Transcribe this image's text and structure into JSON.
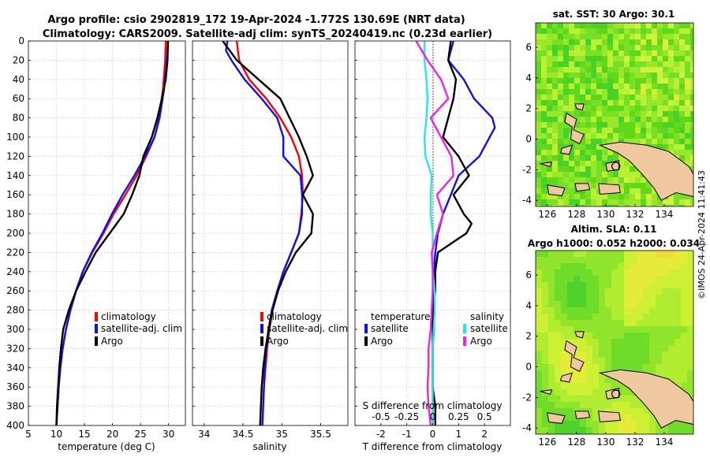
{
  "title": {
    "line1": "Argo profile: csio 2902819_172 19-Apr-2024 -1.772S 130.69E (NRT data)",
    "line2": "Climatology: CARS2009. Satellite-adj clim: synTS_20240419.nc (0.23d earlier)"
  },
  "side_label": "©IMOS 24-Apr-2024 11:41:43",
  "colors": {
    "climatology": "#ff0000",
    "satellite": "#1010ee",
    "argo": "#000000",
    "sat_salinity": "#22e8ee",
    "argo_salinity": "#ee22ee",
    "land": "#f0c8a0",
    "grid": "#c8c8c8"
  },
  "chart_data": [
    {
      "type": "line",
      "name": "temperature",
      "xlabel": "temperature (deg C)",
      "ylabel": "",
      "xlim": [
        5,
        33
      ],
      "ylim": [
        400,
        0
      ],
      "xticks": [
        5,
        10,
        15,
        20,
        25,
        30
      ],
      "yticks": [
        0,
        20,
        40,
        60,
        80,
        100,
        120,
        140,
        160,
        180,
        200,
        220,
        240,
        260,
        280,
        300,
        320,
        340,
        360,
        380,
        400
      ],
      "legend": [
        "climatology",
        "satellite-adj. clim",
        "Argo"
      ],
      "legend_position": "lower-right",
      "series": [
        {
          "name": "climatology",
          "depth": [
            0,
            20,
            50,
            80,
            100,
            120,
            140,
            160,
            180,
            200,
            220,
            240,
            260,
            280,
            300,
            320,
            340,
            360,
            380,
            400
          ],
          "values": [
            29.5,
            29.4,
            29.0,
            28.3,
            27.5,
            26.0,
            24.3,
            22.3,
            20.2,
            18.4,
            16.4,
            14.7,
            13.5,
            12.5,
            11.7,
            11.1,
            10.7,
            10.4,
            10.2,
            10.0
          ]
        },
        {
          "name": "satellite-adj. clim",
          "depth": [
            0,
            20,
            50,
            80,
            100,
            120,
            140,
            160,
            180,
            200,
            220,
            240,
            260,
            280,
            300,
            320,
            340,
            360,
            380,
            400
          ],
          "values": [
            29.9,
            29.7,
            29.2,
            28.4,
            27.5,
            25.8,
            23.9,
            21.8,
            19.9,
            18.2,
            16.3,
            14.7,
            13.5,
            12.5,
            11.7,
            11.1,
            10.7,
            10.4,
            10.2,
            10.0
          ]
        },
        {
          "name": "Argo",
          "depth": [
            0,
            20,
            40,
            60,
            80,
            100,
            120,
            140,
            160,
            180,
            200,
            220,
            240,
            260,
            280,
            300,
            320,
            340,
            360,
            380,
            400
          ],
          "values": [
            29.9,
            29.8,
            29.5,
            28.8,
            28.0,
            27.0,
            25.5,
            24.8,
            23.5,
            22.0,
            19.5,
            17.0,
            15.2,
            13.5,
            12.2,
            11.2,
            10.8,
            10.5,
            10.3,
            10.1,
            10.0
          ]
        }
      ]
    },
    {
      "type": "line",
      "name": "salinity",
      "xlabel": "salinity",
      "ylabel": "",
      "xlim": [
        33.85,
        35.85
      ],
      "ylim": [
        400,
        0
      ],
      "xticks": [
        34,
        34.5,
        35,
        35.5
      ],
      "legend": [
        "climatology",
        "satellite-adj. clim",
        "Argo"
      ],
      "legend_position": "lower-right",
      "series": [
        {
          "name": "climatology",
          "depth": [
            0,
            20,
            40,
            60,
            80,
            100,
            120,
            140,
            160,
            180,
            200,
            220,
            240,
            260,
            280,
            300,
            320,
            340,
            360,
            380,
            400
          ],
          "values": [
            34.42,
            34.45,
            34.58,
            34.8,
            34.98,
            35.12,
            35.22,
            35.26,
            35.27,
            35.25,
            35.22,
            35.12,
            35.02,
            34.95,
            34.88,
            34.84,
            34.81,
            34.79,
            34.77,
            34.76,
            34.75
          ]
        },
        {
          "name": "satellite-adj. clim",
          "depth": [
            0,
            10,
            20,
            40,
            60,
            80,
            100,
            120,
            140,
            160,
            180,
            200,
            220,
            240,
            260,
            280,
            300,
            320,
            340,
            360,
            380,
            400
          ],
          "values": [
            34.3,
            34.28,
            34.35,
            34.52,
            34.74,
            34.94,
            35.02,
            35.02,
            35.24,
            35.26,
            35.26,
            35.22,
            35.12,
            35.02,
            34.94,
            34.87,
            34.83,
            34.8,
            34.78,
            34.77,
            34.76,
            34.75
          ]
        },
        {
          "name": "Argo",
          "depth": [
            0,
            20,
            40,
            60,
            80,
            100,
            120,
            140,
            160,
            180,
            200,
            220,
            240,
            260,
            280,
            300,
            320,
            340,
            360,
            380,
            400
          ],
          "values": [
            34.24,
            34.42,
            34.7,
            34.98,
            35.1,
            35.22,
            35.32,
            35.4,
            35.27,
            35.4,
            35.38,
            35.18,
            35.05,
            34.95,
            34.88,
            34.83,
            34.79,
            34.76,
            34.74,
            34.73,
            34.72
          ]
        }
      ]
    },
    {
      "type": "line",
      "name": "differences from climatology",
      "xlabel": "T difference from climatology",
      "x2label": "S difference from climatology",
      "xlim": [
        -3,
        3
      ],
      "x2lim": [
        -0.75,
        0.75
      ],
      "ylim": [
        400,
        0
      ],
      "xticks": [
        -2,
        -1,
        0,
        1,
        2
      ],
      "x2ticks": [
        -0.5,
        -0.25,
        0,
        0.25,
        0.5
      ],
      "x2ticklabels": [
        "-0.5",
        "-0.25",
        "0",
        "0.25",
        "0.5"
      ],
      "legend_temperature": {
        "title": "temperature",
        "items": [
          "satellite",
          "Argo"
        ]
      },
      "legend_salinity": {
        "title": "salinity",
        "items": [
          "satellite",
          "Argo"
        ]
      },
      "series": [
        {
          "name": "temperature satellite",
          "axis": "T",
          "depth": [
            0,
            20,
            40,
            60,
            80,
            90,
            100,
            120,
            140,
            160,
            180,
            200,
            220,
            240,
            260,
            280,
            300,
            320,
            340,
            360,
            380,
            400
          ],
          "values": [
            0.8,
            0.6,
            1.2,
            1.6,
            2.3,
            2.4,
            2.2,
            1.8,
            1.0,
            0.7,
            0.4,
            0.2,
            0.1,
            0.05,
            0.05,
            0.05,
            0.05,
            0.0,
            0.0,
            0.0,
            0.0,
            0.0
          ]
        },
        {
          "name": "temperature Argo",
          "axis": "T",
          "depth": [
            0,
            20,
            40,
            60,
            80,
            100,
            120,
            140,
            160,
            180,
            190,
            200,
            220,
            240,
            260,
            280,
            300,
            320,
            340,
            360,
            380,
            400
          ],
          "values": [
            0.7,
            0.6,
            0.9,
            0.8,
            0.6,
            0.4,
            1.0,
            1.4,
            0.8,
            1.2,
            1.5,
            1.3,
            0.2,
            0.1,
            0.1,
            0.0,
            0.0,
            0.0,
            0.0,
            0.0,
            0.1,
            0.1
          ]
        },
        {
          "name": "salinity satellite",
          "axis": "S",
          "depth": [
            0,
            20,
            40,
            60,
            80,
            100,
            120,
            140,
            160,
            180,
            200,
            220,
            240,
            260,
            280,
            300,
            320,
            340,
            360,
            380,
            400
          ],
          "values": [
            -0.08,
            -0.08,
            -0.06,
            -0.05,
            -0.06,
            -0.08,
            -0.07,
            -0.01,
            -0.02,
            -0.02,
            0.0,
            0.0,
            0.0,
            0.02,
            0.02,
            0.01,
            0.0,
            0.0,
            0.0,
            0.0,
            0.0
          ]
        },
        {
          "name": "salinity Argo",
          "axis": "S",
          "depth": [
            0,
            20,
            40,
            60,
            80,
            100,
            120,
            140,
            160,
            180,
            200,
            220,
            240,
            260,
            280,
            300,
            320,
            340,
            360,
            380,
            400
          ],
          "values": [
            -0.16,
            -0.05,
            0.08,
            0.15,
            -0.02,
            0.08,
            0.18,
            0.2,
            0.04,
            0.1,
            0.04,
            -0.01,
            0.0,
            0.0,
            -0.01,
            -0.02,
            -0.04,
            -0.04,
            -0.05,
            -0.04,
            -0.02
          ]
        }
      ]
    },
    {
      "type": "heatmap",
      "name": "sat. SST map",
      "title": "sat. SST: 30 Argo: 30.1",
      "xlim": [
        125.2,
        136
      ],
      "ylim": [
        -4.4,
        7.6
      ],
      "xticks": [
        126,
        128,
        130,
        132,
        134
      ],
      "yticks": [
        -4,
        -2,
        0,
        2,
        4,
        6
      ],
      "profile_location": [
        130.69,
        -1.772
      ]
    },
    {
      "type": "heatmap",
      "name": "Altim. SLA map",
      "title1": "Altim. SLA: 0.11",
      "title2": "Argo h1000: 0.052 h2000: 0.034",
      "xlim": [
        125.2,
        136
      ],
      "ylim": [
        -4.4,
        7.6
      ],
      "xticks": [
        126,
        128,
        130,
        132,
        134
      ],
      "yticks": [
        -4,
        -2,
        0,
        2,
        4,
        6
      ],
      "profile_location": [
        130.69,
        -1.772
      ]
    }
  ]
}
